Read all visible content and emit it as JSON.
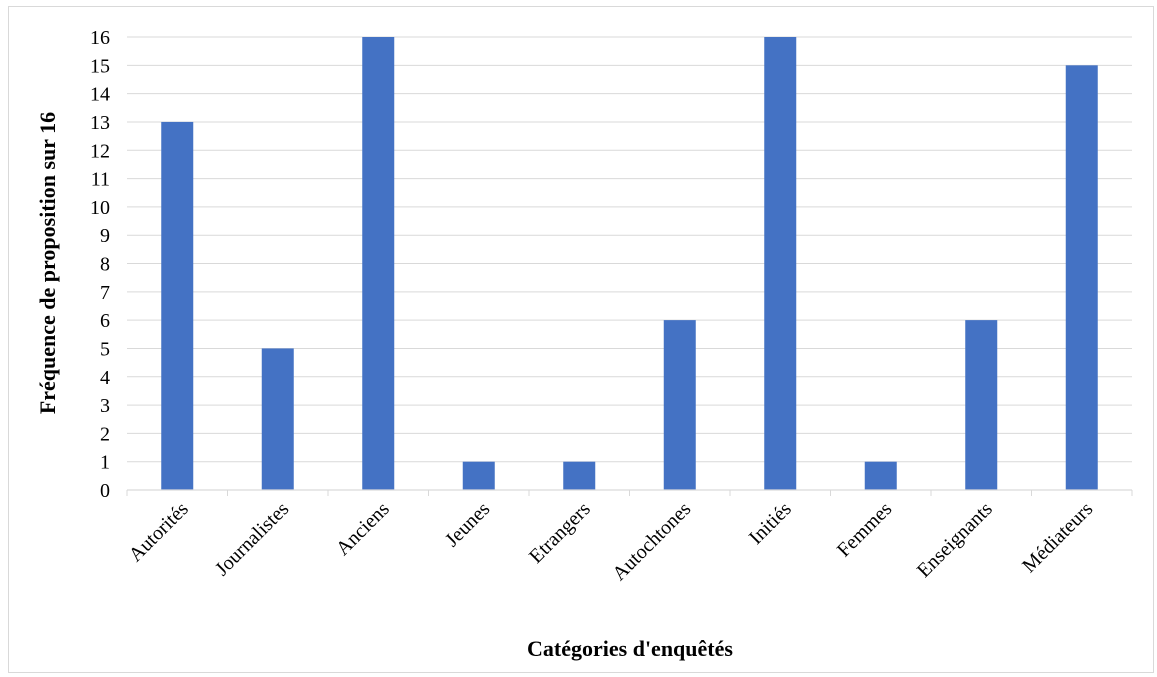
{
  "chart_data": {
    "type": "bar",
    "title": "",
    "xlabel": "Catégories d'enquêtés",
    "ylabel": "Fréquence  de proposition sur 16",
    "categories": [
      "Autorités",
      "Journalistes",
      "Anciens",
      "Jeunes",
      "Etrangers",
      "Autochtones",
      "Initiés",
      "Femmes",
      "Enseignants",
      "Médiateurs"
    ],
    "values": [
      13,
      5,
      16,
      1,
      1,
      6,
      16,
      1,
      6,
      15
    ],
    "ylim": [
      0,
      16
    ],
    "yticks": [
      0,
      1,
      2,
      3,
      4,
      5,
      6,
      7,
      8,
      9,
      10,
      11,
      12,
      13,
      14,
      15,
      16
    ],
    "grid": true,
    "legend": "none",
    "bar_color": "#4472C4",
    "grid_color": "#d9d9d9"
  }
}
